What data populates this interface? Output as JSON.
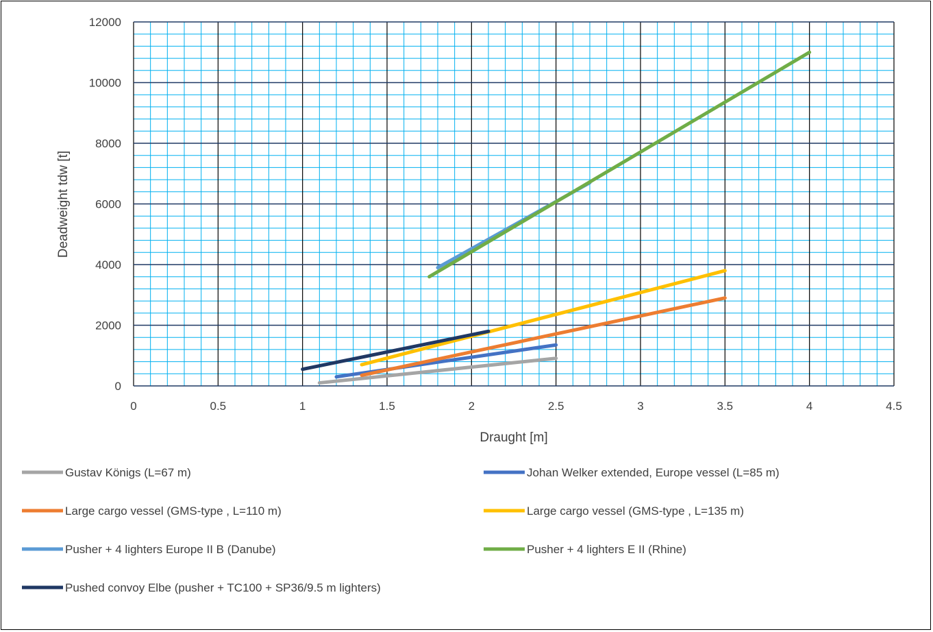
{
  "chart_data": {
    "type": "line",
    "title": "",
    "xlabel": "Draught [m]",
    "ylabel": "Deadweight tdw [t]",
    "xlim": [
      0,
      4.5
    ],
    "ylim": [
      0,
      12000
    ],
    "x_ticks": [
      "0",
      "0.5",
      "1",
      "1.5",
      "2",
      "2.5",
      "3",
      "3.5",
      "4",
      "4.5"
    ],
    "y_ticks": [
      "0",
      "2000",
      "4000",
      "6000",
      "8000",
      "10000",
      "12000"
    ],
    "grid": "major and minor",
    "legend_position": "bottom",
    "series": [
      {
        "name": "Gustav Königs (L=67 m)",
        "color": "#a5a5a5",
        "x": [
          1.1,
          2.5
        ],
        "y": [
          100,
          910
        ]
      },
      {
        "name": "Johan Welker extended, Europe vessel (L=85 m)",
        "color": "#4472c4",
        "x": [
          1.2,
          2.5
        ],
        "y": [
          300,
          1350
        ]
      },
      {
        "name": "Large cargo vessel (GMS-type , L=110 m)",
        "color": "#ed7d31",
        "x": [
          1.35,
          3.5
        ],
        "y": [
          350,
          2900
        ]
      },
      {
        "name": "Large cargo vessel (GMS-type , L=135 m)",
        "color": "#ffc000",
        "x": [
          1.35,
          3.5
        ],
        "y": [
          700,
          3800
        ]
      },
      {
        "name": "Pusher + 4 lighters Europe II B (Danube)",
        "color": "#5b9bd5",
        "x": [
          1.8,
          2.7
        ],
        "y": [
          3900,
          6700
        ]
      },
      {
        "name": "Pusher + 4 lighters E II (Rhine)",
        "color": "#70ad47",
        "x": [
          1.75,
          4.0
        ],
        "y": [
          3600,
          11000
        ]
      },
      {
        "name": "Pushed convoy Elbe (pusher + TC100 + SP36/9.5 m lighters)",
        "color": "#203864",
        "x": [
          1.0,
          2.1
        ],
        "y": [
          550,
          1800
        ]
      }
    ]
  }
}
